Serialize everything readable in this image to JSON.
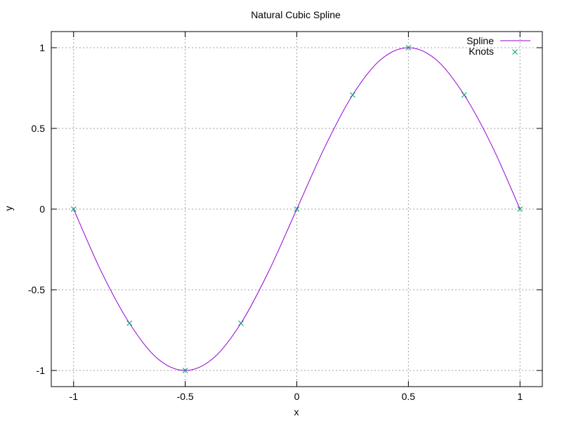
{
  "chart_data": {
    "type": "line",
    "title": "Natural Cubic Spline",
    "xlabel": "x",
    "ylabel": "y",
    "xlim": [
      -1.1,
      1.1
    ],
    "ylim": [
      -1.1,
      1.1
    ],
    "xticks": [
      -1,
      -0.5,
      0,
      0.5,
      1
    ],
    "xtick_labels": [
      "-1",
      "-0.5",
      "0",
      "0.5",
      "1"
    ],
    "yticks": [
      -1,
      -0.5,
      0,
      0.5,
      1
    ],
    "ytick_labels": [
      "-1",
      "-0.5",
      "0",
      "0.5",
      "1"
    ],
    "grid": true,
    "legend_position": "top-right",
    "series": [
      {
        "name": "Spline",
        "kind": "line",
        "color": "#9400d3",
        "x": [
          -1,
          -0.875,
          -0.75,
          -0.625,
          -0.5,
          -0.375,
          -0.25,
          -0.125,
          0,
          0.125,
          0.25,
          0.375,
          0.5,
          0.625,
          0.75,
          0.875,
          1
        ],
        "y": [
          0,
          -0.39,
          -0.707,
          -0.925,
          -1,
          -0.925,
          -0.707,
          -0.383,
          0,
          0.383,
          0.707,
          0.925,
          1,
          0.925,
          0.707,
          0.39,
          0
        ]
      },
      {
        "name": "Knots",
        "kind": "points",
        "marker": "x",
        "color": "#009e73",
        "x": [
          -1,
          -0.75,
          -0.5,
          -0.25,
          0,
          0.25,
          0.5,
          0.75,
          1
        ],
        "y": [
          0,
          -0.707,
          -1,
          -0.707,
          0,
          0.707,
          1,
          0.707,
          0
        ]
      }
    ]
  }
}
